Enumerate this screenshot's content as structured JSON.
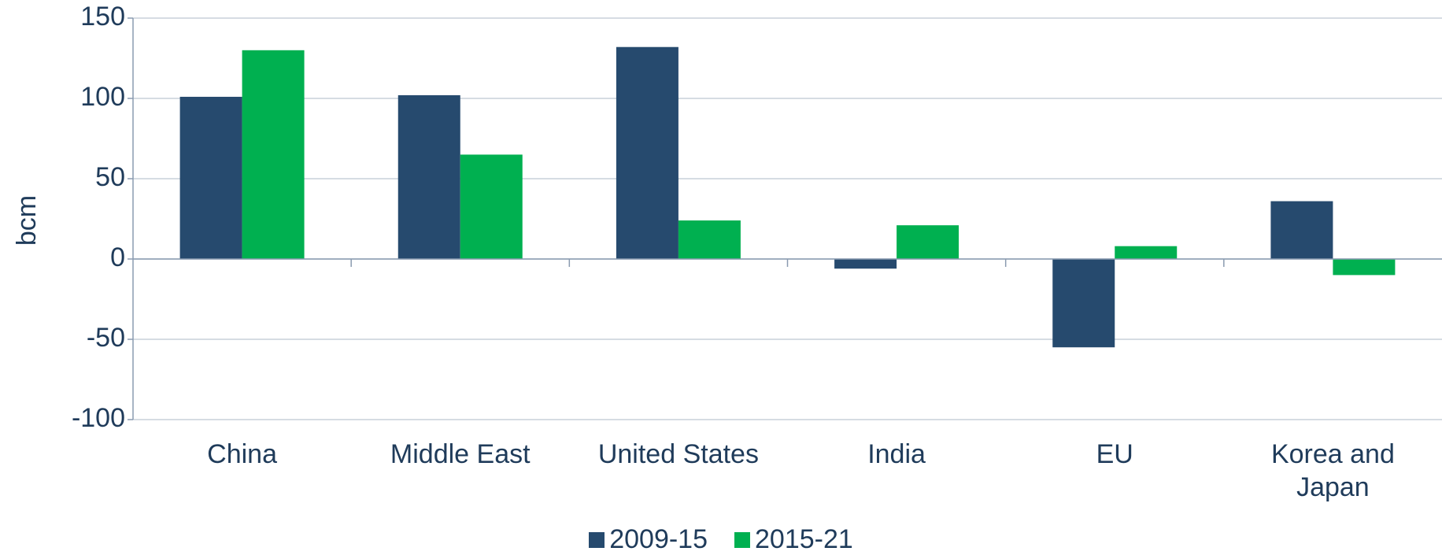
{
  "chart_data": {
    "type": "bar",
    "y_label": "bcm",
    "categories": [
      "China",
      "Middle East",
      "United States",
      "India",
      "EU",
      "Korea and Japan"
    ],
    "series": [
      {
        "name": "2009-15",
        "color": "#264a6e",
        "values": [
          101,
          102,
          132,
          -6,
          -55,
          36
        ]
      },
      {
        "name": "2015-21",
        "color": "#00b050",
        "values": [
          130,
          65,
          24,
          21,
          8,
          -10
        ]
      }
    ],
    "ylim": [
      -100,
      150
    ],
    "yticks": [
      -100,
      -50,
      0,
      50,
      100,
      150
    ],
    "grid": true,
    "legend": "bottom"
  }
}
